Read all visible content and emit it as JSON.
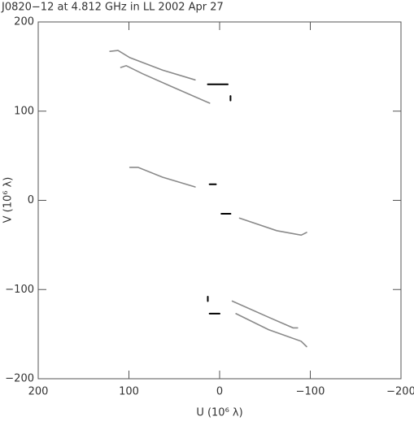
{
  "chart_data": {
    "type": "line",
    "title": "J0820−12 at 4.812 GHz in LL  2002 Apr 27",
    "x_label": "U (10⁶ λ)",
    "y_label": "V (10⁶ λ)",
    "xlim": [
      200,
      -200
    ],
    "ylim": [
      -200,
      200
    ],
    "xticks": [
      {
        "value": 200,
        "label": "200"
      },
      {
        "value": 100,
        "label": "100"
      },
      0,
      {
        "value": -100,
        "label": "−100"
      },
      {
        "value": -200,
        "label": "−200"
      }
    ],
    "yticks": [
      {
        "value": -200,
        "label": "−200"
      },
      {
        "value": -100,
        "label": "−100"
      },
      0,
      100,
      200
    ],
    "series": [
      {
        "color": "#8a8a8a",
        "x": [
          121,
          112,
          99,
          63,
          27
        ],
        "values": [
          167,
          168,
          160,
          146,
          135
        ]
      },
      {
        "color": "#8a8a8a",
        "x": [
          109,
          103,
          85,
          54,
          11
        ],
        "values": [
          149,
          151,
          142,
          128,
          109
        ]
      },
      {
        "color": "#000000",
        "x": [
          13,
          -9
        ],
        "values": [
          130,
          130
        ]
      },
      {
        "color": "#000000",
        "x": [
          -12,
          -12
        ],
        "values": [
          117,
          112
        ]
      },
      {
        "color": "#8a8a8a",
        "x": [
          99,
          90,
          63,
          27
        ],
        "values": [
          37,
          37,
          26,
          15
        ]
      },
      {
        "color": "#000000",
        "x": [
          11,
          4
        ],
        "values": [
          18,
          18
        ]
      },
      {
        "color": "#000000",
        "x": [
          -2,
          -12
        ],
        "values": [
          -15,
          -15
        ]
      },
      {
        "color": "#8a8a8a",
        "x": [
          -22,
          -63,
          -90,
          -96
        ],
        "values": [
          -20,
          -34,
          -39,
          -36
        ]
      },
      {
        "color": "#000000",
        "x": [
          13,
          13
        ],
        "values": [
          -108,
          -113
        ]
      },
      {
        "color": "#000000",
        "x": [
          11,
          0
        ],
        "values": [
          -127,
          -127
        ]
      },
      {
        "color": "#8a8a8a",
        "x": [
          -14,
          -54,
          -81,
          -86
        ],
        "values": [
          -113,
          -131,
          -143,
          -143
        ]
      },
      {
        "color": "#8a8a8a",
        "x": [
          -18,
          -54,
          -90,
          -96
        ],
        "values": [
          -127,
          -145,
          -158,
          -164
        ]
      }
    ]
  }
}
